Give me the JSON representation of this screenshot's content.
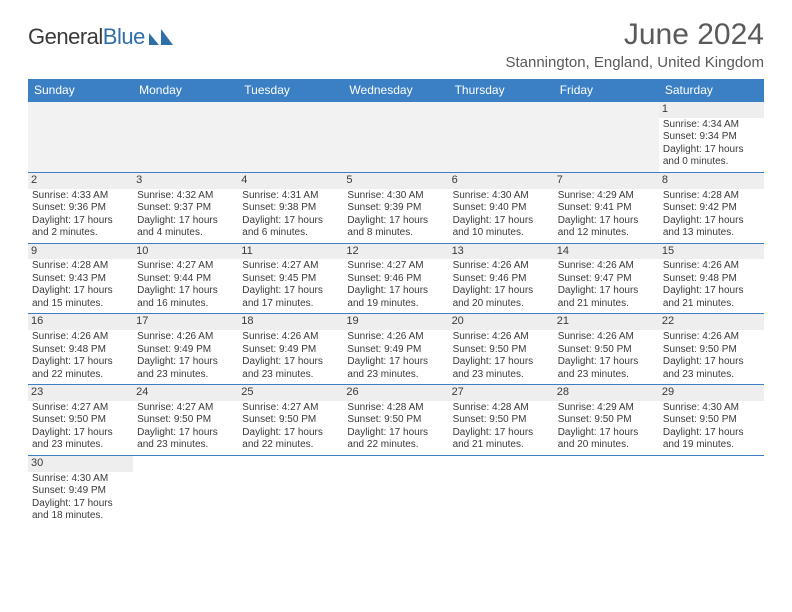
{
  "logo": {
    "part1": "General",
    "part2": "Blue"
  },
  "title": "June 2024",
  "location": "Stannington, England, United Kingdom",
  "colors": {
    "header_bg": "#3b7fc4",
    "header_text": "#ffffff",
    "daynum_bg": "#eeeeee",
    "text": "#3a3a3a",
    "rule": "#3b7fc4",
    "logo_blue": "#2f6fa8"
  },
  "day_names": [
    "Sunday",
    "Monday",
    "Tuesday",
    "Wednesday",
    "Thursday",
    "Friday",
    "Saturday"
  ],
  "weeks": [
    [
      null,
      null,
      null,
      null,
      null,
      null,
      {
        "n": "1",
        "sunrise": "Sunrise: 4:34 AM",
        "sunset": "Sunset: 9:34 PM",
        "day1": "Daylight: 17 hours",
        "day2": "and 0 minutes."
      }
    ],
    [
      {
        "n": "2",
        "sunrise": "Sunrise: 4:33 AM",
        "sunset": "Sunset: 9:36 PM",
        "day1": "Daylight: 17 hours",
        "day2": "and 2 minutes."
      },
      {
        "n": "3",
        "sunrise": "Sunrise: 4:32 AM",
        "sunset": "Sunset: 9:37 PM",
        "day1": "Daylight: 17 hours",
        "day2": "and 4 minutes."
      },
      {
        "n": "4",
        "sunrise": "Sunrise: 4:31 AM",
        "sunset": "Sunset: 9:38 PM",
        "day1": "Daylight: 17 hours",
        "day2": "and 6 minutes."
      },
      {
        "n": "5",
        "sunrise": "Sunrise: 4:30 AM",
        "sunset": "Sunset: 9:39 PM",
        "day1": "Daylight: 17 hours",
        "day2": "and 8 minutes."
      },
      {
        "n": "6",
        "sunrise": "Sunrise: 4:30 AM",
        "sunset": "Sunset: 9:40 PM",
        "day1": "Daylight: 17 hours",
        "day2": "and 10 minutes."
      },
      {
        "n": "7",
        "sunrise": "Sunrise: 4:29 AM",
        "sunset": "Sunset: 9:41 PM",
        "day1": "Daylight: 17 hours",
        "day2": "and 12 minutes."
      },
      {
        "n": "8",
        "sunrise": "Sunrise: 4:28 AM",
        "sunset": "Sunset: 9:42 PM",
        "day1": "Daylight: 17 hours",
        "day2": "and 13 minutes."
      }
    ],
    [
      {
        "n": "9",
        "sunrise": "Sunrise: 4:28 AM",
        "sunset": "Sunset: 9:43 PM",
        "day1": "Daylight: 17 hours",
        "day2": "and 15 minutes."
      },
      {
        "n": "10",
        "sunrise": "Sunrise: 4:27 AM",
        "sunset": "Sunset: 9:44 PM",
        "day1": "Daylight: 17 hours",
        "day2": "and 16 minutes."
      },
      {
        "n": "11",
        "sunrise": "Sunrise: 4:27 AM",
        "sunset": "Sunset: 9:45 PM",
        "day1": "Daylight: 17 hours",
        "day2": "and 17 minutes."
      },
      {
        "n": "12",
        "sunrise": "Sunrise: 4:27 AM",
        "sunset": "Sunset: 9:46 PM",
        "day1": "Daylight: 17 hours",
        "day2": "and 19 minutes."
      },
      {
        "n": "13",
        "sunrise": "Sunrise: 4:26 AM",
        "sunset": "Sunset: 9:46 PM",
        "day1": "Daylight: 17 hours",
        "day2": "and 20 minutes."
      },
      {
        "n": "14",
        "sunrise": "Sunrise: 4:26 AM",
        "sunset": "Sunset: 9:47 PM",
        "day1": "Daylight: 17 hours",
        "day2": "and 21 minutes."
      },
      {
        "n": "15",
        "sunrise": "Sunrise: 4:26 AM",
        "sunset": "Sunset: 9:48 PM",
        "day1": "Daylight: 17 hours",
        "day2": "and 21 minutes."
      }
    ],
    [
      {
        "n": "16",
        "sunrise": "Sunrise: 4:26 AM",
        "sunset": "Sunset: 9:48 PM",
        "day1": "Daylight: 17 hours",
        "day2": "and 22 minutes."
      },
      {
        "n": "17",
        "sunrise": "Sunrise: 4:26 AM",
        "sunset": "Sunset: 9:49 PM",
        "day1": "Daylight: 17 hours",
        "day2": "and 23 minutes."
      },
      {
        "n": "18",
        "sunrise": "Sunrise: 4:26 AM",
        "sunset": "Sunset: 9:49 PM",
        "day1": "Daylight: 17 hours",
        "day2": "and 23 minutes."
      },
      {
        "n": "19",
        "sunrise": "Sunrise: 4:26 AM",
        "sunset": "Sunset: 9:49 PM",
        "day1": "Daylight: 17 hours",
        "day2": "and 23 minutes."
      },
      {
        "n": "20",
        "sunrise": "Sunrise: 4:26 AM",
        "sunset": "Sunset: 9:50 PM",
        "day1": "Daylight: 17 hours",
        "day2": "and 23 minutes."
      },
      {
        "n": "21",
        "sunrise": "Sunrise: 4:26 AM",
        "sunset": "Sunset: 9:50 PM",
        "day1": "Daylight: 17 hours",
        "day2": "and 23 minutes."
      },
      {
        "n": "22",
        "sunrise": "Sunrise: 4:26 AM",
        "sunset": "Sunset: 9:50 PM",
        "day1": "Daylight: 17 hours",
        "day2": "and 23 minutes."
      }
    ],
    [
      {
        "n": "23",
        "sunrise": "Sunrise: 4:27 AM",
        "sunset": "Sunset: 9:50 PM",
        "day1": "Daylight: 17 hours",
        "day2": "and 23 minutes."
      },
      {
        "n": "24",
        "sunrise": "Sunrise: 4:27 AM",
        "sunset": "Sunset: 9:50 PM",
        "day1": "Daylight: 17 hours",
        "day2": "and 23 minutes."
      },
      {
        "n": "25",
        "sunrise": "Sunrise: 4:27 AM",
        "sunset": "Sunset: 9:50 PM",
        "day1": "Daylight: 17 hours",
        "day2": "and 22 minutes."
      },
      {
        "n": "26",
        "sunrise": "Sunrise: 4:28 AM",
        "sunset": "Sunset: 9:50 PM",
        "day1": "Daylight: 17 hours",
        "day2": "and 22 minutes."
      },
      {
        "n": "27",
        "sunrise": "Sunrise: 4:28 AM",
        "sunset": "Sunset: 9:50 PM",
        "day1": "Daylight: 17 hours",
        "day2": "and 21 minutes."
      },
      {
        "n": "28",
        "sunrise": "Sunrise: 4:29 AM",
        "sunset": "Sunset: 9:50 PM",
        "day1": "Daylight: 17 hours",
        "day2": "and 20 minutes."
      },
      {
        "n": "29",
        "sunrise": "Sunrise: 4:30 AM",
        "sunset": "Sunset: 9:50 PM",
        "day1": "Daylight: 17 hours",
        "day2": "and 19 minutes."
      }
    ],
    [
      {
        "n": "30",
        "sunrise": "Sunrise: 4:30 AM",
        "sunset": "Sunset: 9:49 PM",
        "day1": "Daylight: 17 hours",
        "day2": "and 18 minutes."
      },
      null,
      null,
      null,
      null,
      null,
      null
    ]
  ]
}
